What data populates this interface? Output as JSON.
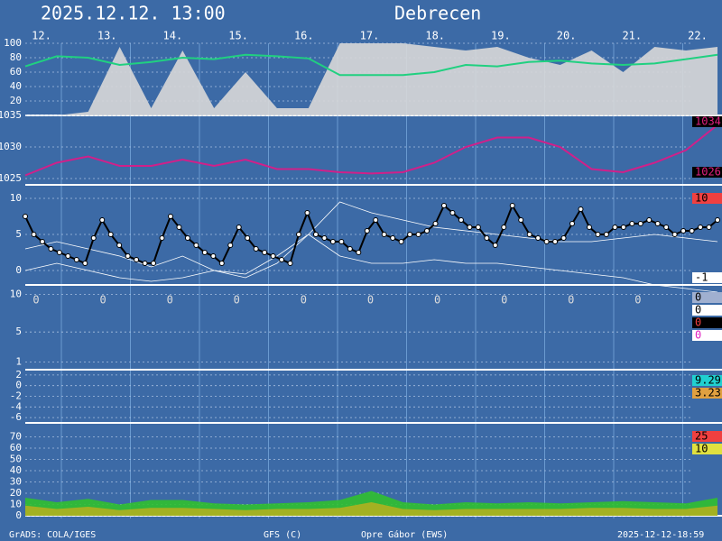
{
  "header": {
    "title": "2025.12.12. 13:00",
    "location": "Debrecen"
  },
  "days": [
    "12.",
    "13.",
    "14.",
    "15.",
    "16.",
    "17.",
    "18.",
    "19.",
    "20.",
    "21.",
    "22."
  ],
  "footer": [
    "GrADS: COLA/IGES",
    "GFS (C)",
    "Opre Gábor (EWS)",
    "2025-12-12-18:59"
  ],
  "chart_data": [
    {
      "type": "line",
      "ylim": [
        0,
        100
      ],
      "yticks": [
        20,
        40,
        60,
        80,
        100
      ],
      "grid": true,
      "series": [
        {
          "color": "#d8d8d8",
          "style": "area",
          "values": [
            0,
            0,
            5,
            95,
            10,
            90,
            10,
            60,
            10,
            10,
            100,
            100,
            100,
            95,
            90,
            95,
            80,
            70,
            90,
            60,
            95,
            90,
            95
          ]
        },
        {
          "color": "#20d080",
          "style": "line",
          "values": [
            68,
            82,
            80,
            70,
            74,
            80,
            78,
            84,
            82,
            79,
            56,
            56,
            56,
            60,
            70,
            68,
            74,
            76,
            72,
            70,
            72,
            78,
            84
          ]
        }
      ],
      "badges": []
    },
    {
      "type": "line",
      "ylim": [
        1024,
        1035
      ],
      "yticks": [
        1025,
        1030,
        1035
      ],
      "grid": true,
      "series": [
        {
          "color": "#d0208a",
          "style": "line",
          "values": [
            1025.5,
            1027.5,
            1028.5,
            1027,
            1027,
            1028,
            1027,
            1028,
            1026.5,
            1026.5,
            1026,
            1025.8,
            1026,
            1027.5,
            1030,
            1031.5,
            1031.5,
            1030,
            1026.5,
            1026,
            1027.5,
            1029.5,
            1033.5
          ]
        }
      ],
      "badges": [
        {
          "text": "1034",
          "bg": "#000000",
          "fg": "#e0207f"
        },
        {
          "text": "1026",
          "bg": "#000000",
          "fg": "#e0207f"
        }
      ]
    },
    {
      "type": "line",
      "ylim": [
        -2,
        12
      ],
      "yticks": [
        0,
        5,
        10
      ],
      "grid": true,
      "series": [
        {
          "color": "#ffffff",
          "style": "thin",
          "values": [
            3,
            4,
            3,
            2,
            0.5,
            2,
            0,
            -0.5,
            2,
            5,
            9.5,
            8,
            7,
            6,
            5.5,
            5,
            4.5,
            4,
            4,
            4.5,
            5,
            4.5,
            4
          ]
        },
        {
          "color": "#ffffff",
          "style": "thin",
          "values": [
            0,
            1,
            0,
            -1,
            -1.5,
            -1,
            0,
            -1,
            1,
            5,
            2,
            1,
            1,
            1.5,
            1,
            1,
            0.5,
            0,
            -0.5,
            -1,
            -2,
            -2.5,
            -3
          ]
        },
        {
          "color": "#000000",
          "style": "line-markers",
          "values": [
            7.5,
            5,
            4,
            3,
            2.5,
            2,
            1.5,
            1,
            4.5,
            7,
            5,
            3.5,
            2,
            1.5,
            1,
            1,
            4.5,
            7.5,
            6,
            4.5,
            3.5,
            2.5,
            2,
            1,
            3.5,
            6,
            4.5,
            3,
            2.5,
            2,
            1.5,
            1,
            5,
            8,
            5,
            4.5,
            4,
            4,
            3,
            2.5,
            5.5,
            7,
            5,
            4.5,
            4,
            5,
            5,
            5.5,
            6.5,
            9,
            8,
            7,
            6,
            6,
            4.5,
            3.5,
            6,
            9,
            7,
            5,
            4.5,
            4,
            4,
            4.5,
            6.5,
            8.5,
            6,
            5,
            5,
            6,
            6,
            6.5,
            6.5,
            7,
            6.5,
            6,
            5,
            5.5,
            5.5,
            6,
            6,
            7
          ]
        }
      ],
      "badges": [
        {
          "text": "10",
          "bg": "#f04040",
          "fg": "#000000"
        },
        {
          "text": "-1",
          "bg": "#ffffff",
          "fg": "#000000"
        }
      ]
    },
    {
      "type": "labels",
      "ylim": [
        0,
        11
      ],
      "yticks": [
        1,
        5,
        10
      ],
      "grid": true,
      "values": [
        0,
        0,
        0,
        0,
        0,
        0,
        0,
        0,
        0,
        0
      ],
      "badges": [
        {
          "text": "0",
          "bg": "#a0b0d0",
          "fg": "#000000"
        },
        {
          "text": "0",
          "bg": "#ffffff",
          "fg": "#000000"
        },
        {
          "text": "0",
          "bg": "#000000",
          "fg": "#f04040"
        },
        {
          "text": "0",
          "bg": "#ffffff",
          "fg": "#e020c0"
        }
      ]
    },
    {
      "type": "line",
      "ylim": [
        -7,
        3
      ],
      "yticks": [
        2,
        0,
        -2,
        -4,
        -6
      ],
      "grid": true,
      "series": [],
      "badges": [
        {
          "text": "9.29",
          "bg": "#20d0d0",
          "fg": "#000000"
        },
        {
          "text": "3.23",
          "bg": "#e0a040",
          "fg": "#000000"
        }
      ]
    },
    {
      "type": "line",
      "ylim": [
        0,
        80
      ],
      "yticks": [
        0,
        10,
        20,
        30,
        40,
        50,
        60,
        70
      ],
      "grid": true,
      "series": [
        {
          "color": "#30c030",
          "style": "area",
          "values": [
            16,
            12,
            15,
            10,
            14,
            14,
            11,
            10,
            11,
            12,
            14,
            22,
            12,
            10,
            12,
            11,
            12,
            11,
            12,
            13,
            12,
            11,
            16
          ]
        },
        {
          "color": "#b0b020",
          "style": "area",
          "values": [
            9,
            6,
            8,
            5,
            7,
            7,
            6,
            5,
            6,
            6,
            7,
            12,
            6,
            5,
            6,
            6,
            6,
            6,
            7,
            7,
            6,
            6,
            9
          ]
        }
      ],
      "badges": [
        {
          "text": "25",
          "bg": "#f04040",
          "fg": "#000000"
        },
        {
          "text": "10",
          "bg": "#e0e040",
          "fg": "#000000"
        }
      ]
    }
  ]
}
